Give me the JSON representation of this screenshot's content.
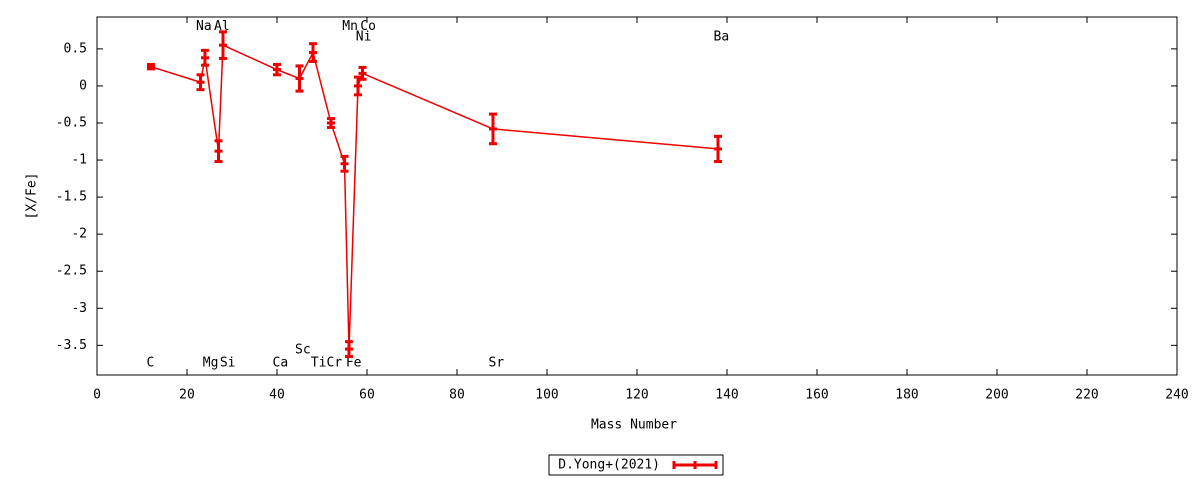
{
  "chart_data": {
    "type": "errorbar-line",
    "xlabel": "Mass Number",
    "ylabel": "[X/Fe]",
    "xlim": [
      0,
      240
    ],
    "xticks": [
      0,
      20,
      40,
      60,
      80,
      100,
      120,
      140,
      160,
      180,
      200,
      220,
      240
    ],
    "ylim": [
      -3.9,
      0.93
    ],
    "yticks": [
      0.5,
      0,
      -0.5,
      -1,
      -1.5,
      -2,
      -2.5,
      -3,
      -3.5
    ],
    "legend_position": "bottom",
    "series": [
      {
        "name": "D.Yong+(2021)",
        "color": "#ee0000",
        "x": [
          12,
          23,
          24,
          27,
          28,
          40,
          45,
          48,
          52,
          55,
          56,
          58,
          59,
          88,
          138
        ],
        "values": [
          0.26,
          0.05,
          0.38,
          -0.88,
          0.55,
          0.22,
          0.1,
          0.45,
          -0.5,
          -1.05,
          -3.55,
          0.0,
          0.17,
          -0.58,
          -0.85
        ],
        "errors": [
          0.03,
          0.1,
          0.1,
          0.14,
          0.18,
          0.07,
          0.17,
          0.12,
          0.06,
          0.1,
          0.1,
          0.12,
          0.08,
          0.2,
          0.17
        ]
      }
    ],
    "annotations": [
      {
        "text": "C",
        "x": 11,
        "y": -3.74
      },
      {
        "text": "Na",
        "x": 22,
        "y": 0.8
      },
      {
        "text": "Mg",
        "x": 23.5,
        "y": -3.74
      },
      {
        "text": "Al",
        "x": 26,
        "y": 0.8
      },
      {
        "text": "Si",
        "x": 27.3,
        "y": -3.74
      },
      {
        "text": "Ca",
        "x": 39,
        "y": -3.74
      },
      {
        "text": "Sc",
        "x": 44,
        "y": -3.56
      },
      {
        "text": "Ti",
        "x": 47.5,
        "y": -3.74
      },
      {
        "text": "Cr",
        "x": 51,
        "y": -3.74
      },
      {
        "text": "Mn",
        "x": 54.5,
        "y": 0.8
      },
      {
        "text": "Fe",
        "x": 55.3,
        "y": -3.74
      },
      {
        "text": "Co",
        "x": 58.5,
        "y": 0.8
      },
      {
        "text": "Ni",
        "x": 57.5,
        "y": 0.66
      },
      {
        "text": "Sr",
        "x": 87,
        "y": -3.74
      },
      {
        "text": "Ba",
        "x": 137,
        "y": 0.66
      }
    ]
  }
}
